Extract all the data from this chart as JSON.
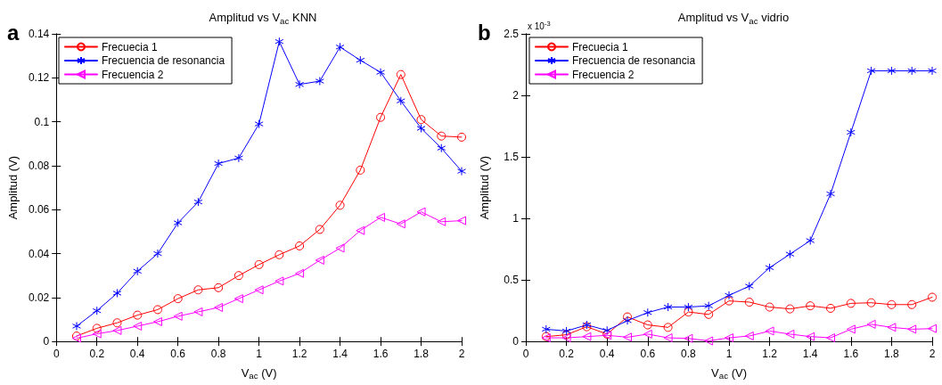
{
  "chart_data": [
    {
      "type": "line",
      "title": "Amplitud vs V$_{ac}$ KNN",
      "xlabel": "V$_{ac}$ (V)",
      "ylabel": "Amplitud (V)",
      "annotations": [
        "a"
      ],
      "x": [
        0.1,
        0.2,
        0.3,
        0.4,
        0.5,
        0.6,
        0.7,
        0.8,
        0.9,
        1.0,
        1.1,
        1.2,
        1.3,
        1.4,
        1.5,
        1.6,
        1.7,
        1.8,
        1.9,
        2.0
      ],
      "series": [
        {
          "name": "Frecuecia 1",
          "color": "#ff0000",
          "marker": "circle",
          "values": [
            0.0025,
            0.006,
            0.0085,
            0.012,
            0.0145,
            0.0195,
            0.0235,
            0.0245,
            0.03,
            0.035,
            0.0395,
            0.0435,
            0.051,
            0.062,
            0.078,
            0.102,
            0.1215,
            0.101,
            0.0935,
            0.093
          ]
        },
        {
          "name": "Frecuencia de resonancia",
          "color": "#0000ff",
          "marker": "cross",
          "values": [
            0.007,
            0.014,
            0.022,
            0.032,
            0.04,
            0.054,
            0.0635,
            0.081,
            0.0835,
            0.099,
            0.1365,
            0.117,
            0.1185,
            0.134,
            0.128,
            0.1225,
            0.1095,
            0.097,
            0.088,
            0.0775
          ]
        },
        {
          "name": "Frecuencia 2",
          "color": "#ff00ff",
          "marker": "triangle",
          "values": [
            0.0015,
            0.0035,
            0.005,
            0.007,
            0.009,
            0.0115,
            0.0135,
            0.0155,
            0.0195,
            0.0235,
            0.0275,
            0.031,
            0.037,
            0.0425,
            0.0505,
            0.0565,
            0.0535,
            0.059,
            0.0545,
            0.055
          ]
        }
      ],
      "xlim": [
        0,
        2
      ],
      "xticks": [
        0,
        0.2,
        0.4,
        0.6,
        0.8,
        1,
        1.2,
        1.4,
        1.6,
        1.8,
        2
      ],
      "ylim": [
        0,
        0.14
      ],
      "yticks": [
        0,
        0.02,
        0.04,
        0.06,
        0.08,
        0.1,
        0.12,
        0.14
      ],
      "grid": false,
      "legend": "top left",
      "line_style": "solid"
    },
    {
      "type": "line",
      "title": "Amplitud vs V$_{ac}$ vidrio",
      "xlabel": "V$_{ac}$ (V)",
      "ylabel": "Amplitud (V)",
      "annotations": [
        "b",
        "x 10$^{-3}$"
      ],
      "x": [
        0.1,
        0.2,
        0.3,
        0.4,
        0.5,
        0.6,
        0.7,
        0.8,
        0.9,
        1.0,
        1.1,
        1.2,
        1.3,
        1.4,
        1.5,
        1.6,
        1.7,
        1.8,
        1.9,
        2.0
      ],
      "series": [
        {
          "name": "Frecuecia 1",
          "color": "#ff0000",
          "marker": "circle",
          "values": [
            0.04,
            0.055,
            0.12,
            0.06,
            0.2,
            0.135,
            0.115,
            0.24,
            0.22,
            0.33,
            0.32,
            0.28,
            0.265,
            0.29,
            0.27,
            0.31,
            0.315,
            0.3,
            0.3,
            0.36
          ]
        },
        {
          "name": "Frecuencia de resonancia",
          "color": "#0000ff",
          "marker": "cross",
          "values": [
            0.1,
            0.085,
            0.135,
            0.09,
            0.17,
            0.235,
            0.28,
            0.28,
            0.29,
            0.375,
            0.45,
            0.6,
            0.71,
            0.82,
            1.2,
            1.7,
            2.2,
            2.2,
            2.2,
            2.2
          ]
        },
        {
          "name": "Frecuencia 2",
          "color": "#ff00ff",
          "marker": "triangle",
          "values": [
            0.03,
            0.03,
            0.04,
            0.05,
            0.035,
            0.06,
            0.03,
            0.025,
            0.005,
            0.03,
            0.045,
            0.085,
            0.06,
            0.04,
            0.03,
            0.1,
            0.14,
            0.115,
            0.1,
            0.105
          ]
        }
      ],
      "xlim": [
        0,
        2
      ],
      "xticks": [
        0,
        0.2,
        0.4,
        0.6,
        0.8,
        1,
        1.2,
        1.4,
        1.6,
        1.8,
        2
      ],
      "ylim": [
        0,
        2.5
      ],
      "yticks": [
        0,
        0.5,
        1,
        1.5,
        2,
        2.5
      ],
      "grid": false,
      "legend": "top left",
      "line_style": "solid"
    }
  ]
}
